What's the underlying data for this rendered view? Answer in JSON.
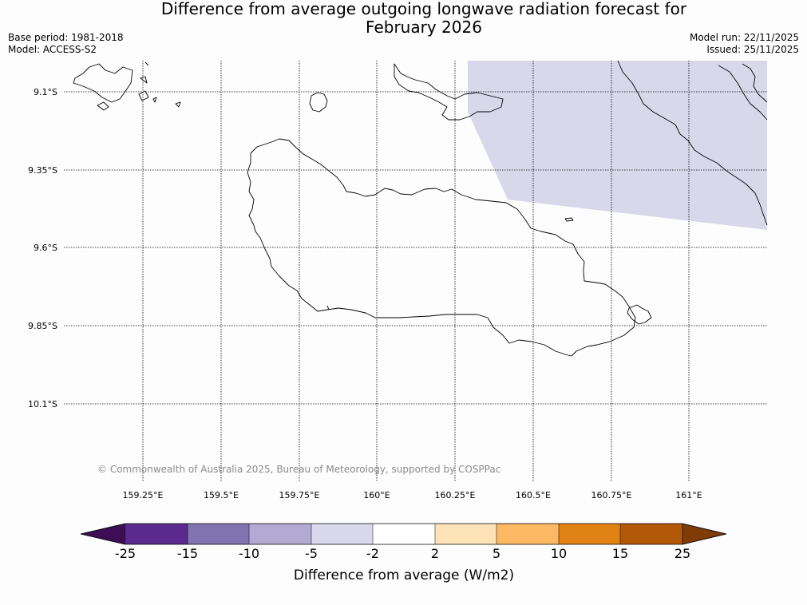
{
  "title_line1": "Difference from average outgoing longwave radiation forecast for",
  "title_line2": "February 2026",
  "base_period": "Base period: 1981-2018",
  "model": "Model: ACCESS-S2",
  "model_run": "Model run: 22/11/2025",
  "issued": "Issued: 25/11/2025",
  "map": {
    "lat_labels": [
      "9.1°S",
      "9.35°S",
      "9.6°S",
      "9.85°S",
      "10.1°S"
    ],
    "lon_labels": [
      "159.25°E",
      "159.5°E",
      "159.75°E",
      "160°E",
      "160.25°E",
      "160.5°E",
      "160.75°E",
      "161°E"
    ],
    "copyright": "© Commonwealth of Australia 2025, Bureau of Meteorology, supported by COSPPac",
    "shaded_category": "-5 to -2",
    "shade_color": "#d8d8ea"
  },
  "legend": {
    "labels": [
      "-25",
      "-15",
      "-10",
      "-5",
      "-2",
      "2",
      "5",
      "10",
      "15",
      "25"
    ],
    "colors": [
      "#3d0e55",
      "#5a2a8e",
      "#8074b0",
      "#b2aad2",
      "#d8d8ea",
      "#ffffff",
      "#fee2b8",
      "#fdb863",
      "#e08214",
      "#b35806",
      "#7f3b08"
    ],
    "title": "Difference from average (W/m2)"
  }
}
